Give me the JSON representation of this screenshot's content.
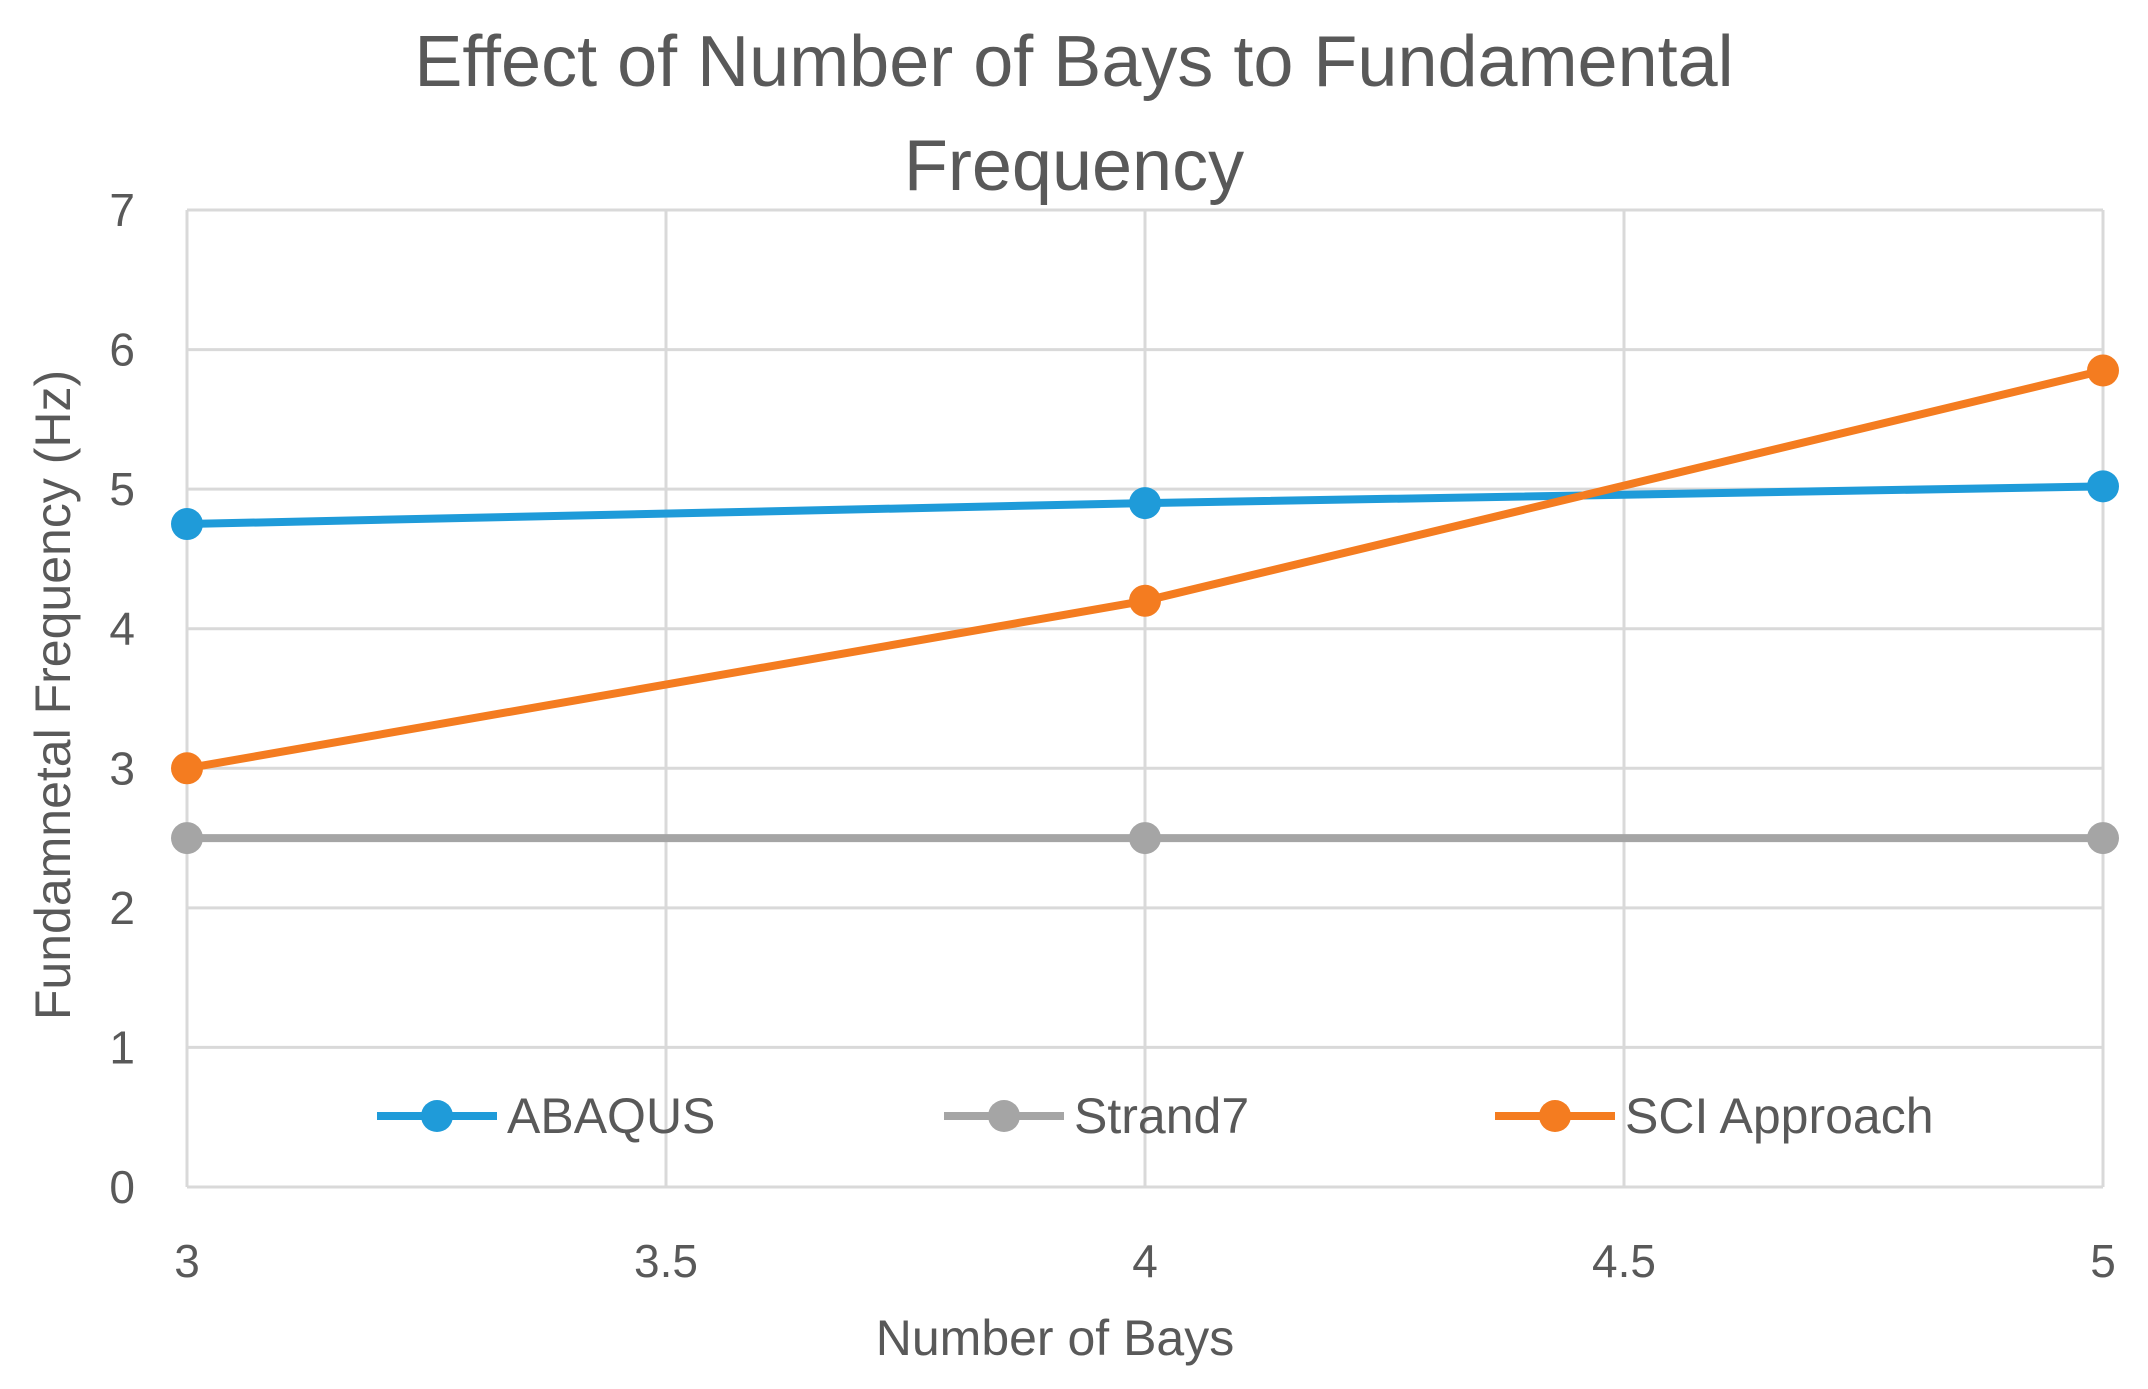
{
  "chart_data": {
    "type": "line",
    "title_lines": [
      "Effect of Number of Bays to Fundamental",
      "Frequency"
    ],
    "xlabel": "Number of Bays",
    "ylabel": "Fundamnetal Frequency (Hz)",
    "xlim": [
      3,
      5
    ],
    "ylim": [
      0,
      7
    ],
    "x_ticks": [
      3,
      3.5,
      4,
      4.5,
      5
    ],
    "x_tick_labels": [
      "3",
      "3.5",
      "4",
      "4.5",
      "5"
    ],
    "y_ticks": [
      0,
      1,
      2,
      3,
      4,
      5,
      6,
      7
    ],
    "y_tick_labels": [
      "0",
      "1",
      "2",
      "3",
      "4",
      "5",
      "6",
      "7"
    ],
    "grid": true,
    "legend_position": "bottom-inside",
    "series": [
      {
        "name": "ABAQUS",
        "color": "#1f9bd9",
        "x": [
          3,
          4,
          5
        ],
        "values": [
          4.75,
          4.9,
          5.02
        ]
      },
      {
        "name": "Strand7",
        "color": "#a5a5a5",
        "x": [
          3,
          4,
          5
        ],
        "values": [
          2.5,
          2.5,
          2.5
        ]
      },
      {
        "name": "SCI Approach",
        "color": "#f47c20",
        "x": [
          3,
          4,
          5
        ],
        "values": [
          3.0,
          4.2,
          5.85
        ]
      }
    ]
  },
  "colors": {
    "gridline": "#d9d9d9",
    "text": "#595959",
    "background": "#ffffff"
  }
}
